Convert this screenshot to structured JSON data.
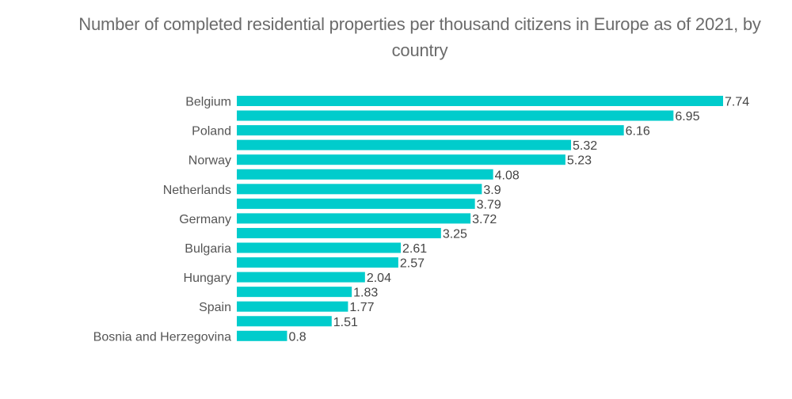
{
  "chart_data": {
    "type": "bar",
    "orientation": "horizontal",
    "title": "Number of completed residential properties per thousand citizens in Europe as of 2021, by country",
    "xlabel": "",
    "ylabel": "",
    "categories": [
      "Belgium",
      "",
      "Poland",
      "",
      "Norway",
      "",
      "Netherlands",
      "",
      "Germany",
      "",
      "Bulgaria",
      "",
      "Hungary",
      "",
      "Spain",
      "",
      "Bosnia and Herzegovina"
    ],
    "values": [
      7.74,
      6.95,
      6.16,
      5.32,
      5.23,
      4.08,
      3.9,
      3.79,
      3.72,
      3.25,
      2.61,
      2.57,
      2.04,
      1.83,
      1.77,
      1.51,
      0.8
    ],
    "value_labels": [
      "7.74",
      "6.95",
      "6.16",
      "5.32",
      "5.23",
      "4.08",
      "3.9",
      "3.79",
      "3.72",
      "3.25",
      "2.61",
      "2.57",
      "2.04",
      "1.83",
      "1.77",
      "1.51",
      "0.8"
    ],
    "xlim": [
      0,
      7.74
    ],
    "grid": false,
    "legend": "none",
    "bar_color": "#00CCCC"
  }
}
